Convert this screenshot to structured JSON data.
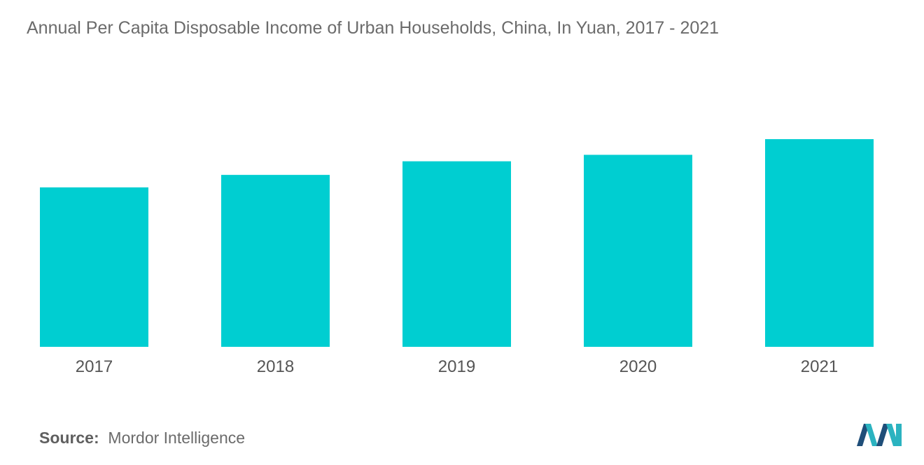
{
  "chart_data": {
    "type": "bar",
    "title": "Annual Per Capita Disposable Income of Urban Households, China, In Yuan, 2017 - 2021",
    "categories": [
      "2017",
      "2018",
      "2019",
      "2020",
      "2021"
    ],
    "values": [
      36396,
      39251,
      42359,
      43834,
      47412
    ],
    "xlabel": "",
    "ylabel": "",
    "ylim": [
      0,
      47412
    ],
    "grid": false,
    "legend": "none",
    "bar_color": "#00CED1"
  },
  "source": {
    "label": "Source:",
    "text": "Mordor Intelligence"
  },
  "colors": {
    "bar": "#00CED1",
    "logo_dark": "#1f4e79",
    "logo_light": "#2bb3c0"
  }
}
